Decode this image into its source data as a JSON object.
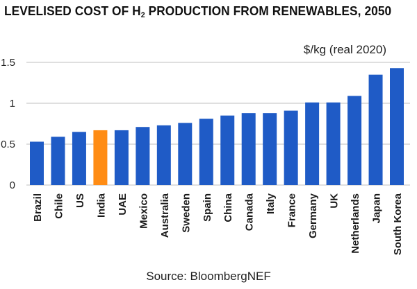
{
  "title": {
    "pre": "LEVELISED COST OF H",
    "sub": "2",
    "post": " PRODUCTION FROM RENEWABLES, 2050"
  },
  "unit_label": "$/kg (real 2020)",
  "source": "Source: BloombergNEF",
  "colors": {
    "bar": "#1f5bc6",
    "highlight": "#ff8c14",
    "grid": "#bfbfbf",
    "text": "#222222"
  },
  "chart_data": {
    "type": "bar",
    "categories": [
      "Brazil",
      "Chile",
      "US",
      "India",
      "UAE",
      "Mexico",
      "Australia",
      "Sweden",
      "Spain",
      "China",
      "Canada",
      "Italy",
      "France",
      "Germany",
      "UK",
      "Netherlands",
      "Japan",
      "South Korea"
    ],
    "values": [
      0.53,
      0.59,
      0.65,
      0.67,
      0.67,
      0.71,
      0.73,
      0.76,
      0.81,
      0.85,
      0.88,
      0.88,
      0.91,
      1.01,
      1.01,
      1.09,
      1.35,
      1.43
    ],
    "highlight": "India",
    "ylim": [
      0,
      1.5
    ],
    "yticks": [
      "0",
      "0.5",
      "1",
      "1.5"
    ],
    "ytick_values": [
      0,
      0.5,
      1,
      1.5
    ],
    "grid": true
  }
}
